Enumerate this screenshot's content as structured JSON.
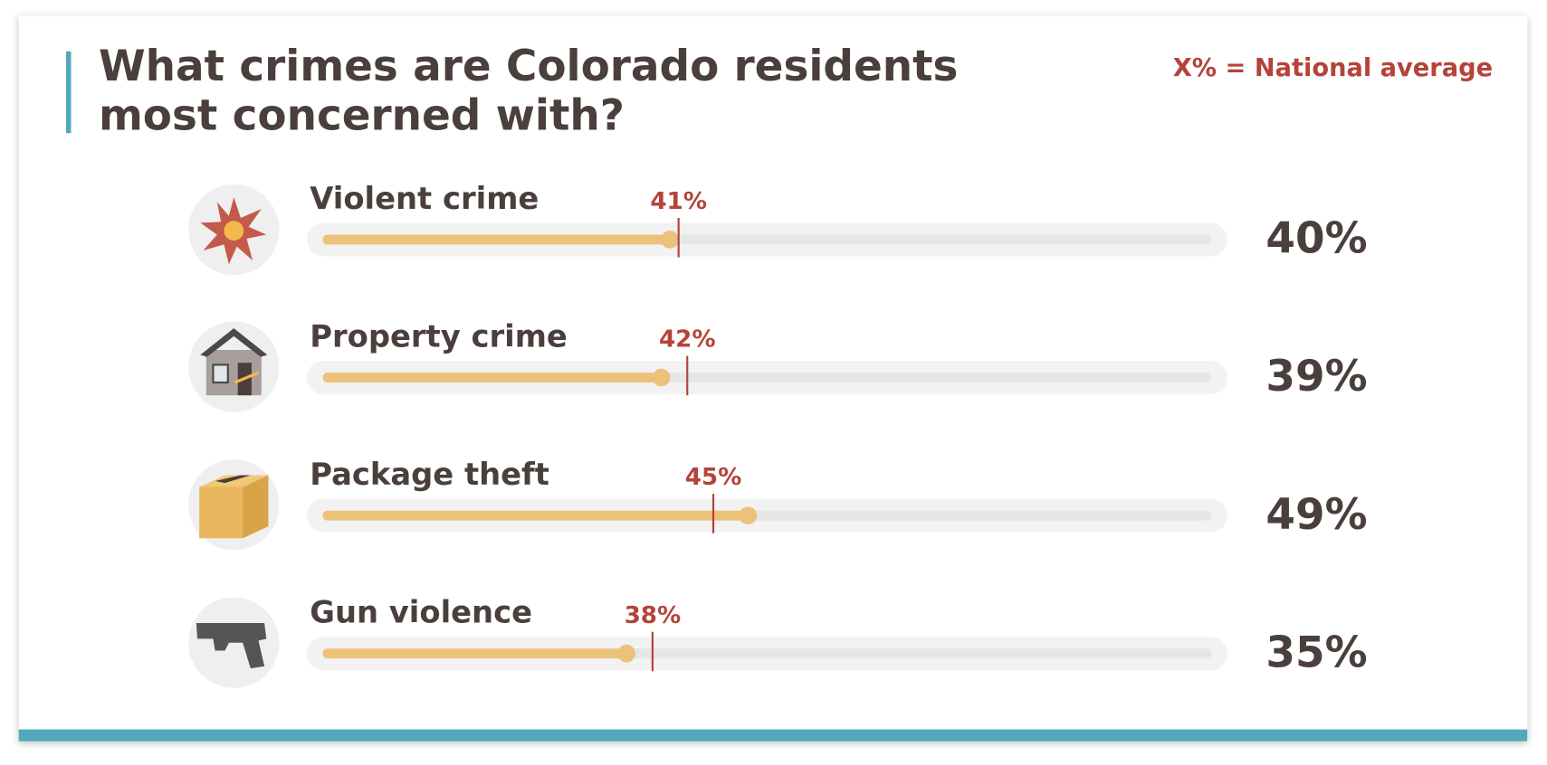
{
  "chart_data": {
    "type": "progress",
    "title": [
      "What crimes are Colorado residents",
      "most concerned with?"
    ],
    "note": "X% = National average",
    "categories": [
      "Violent crime",
      "Property crime",
      "Package theft",
      "Gun violence"
    ],
    "values": [
      40,
      39,
      49,
      35
    ],
    "value_labels": [
      "40%",
      "39%",
      "49%",
      "35%"
    ],
    "averages": [
      41,
      42,
      45,
      38
    ],
    "average_labels": [
      "41%",
      "42%",
      "45%",
      "38%"
    ],
    "xlim": [
      0,
      100
    ],
    "color": "#ecc27a",
    "average_color": "#b5433a",
    "track_color": "#e6e6e6"
  }
}
